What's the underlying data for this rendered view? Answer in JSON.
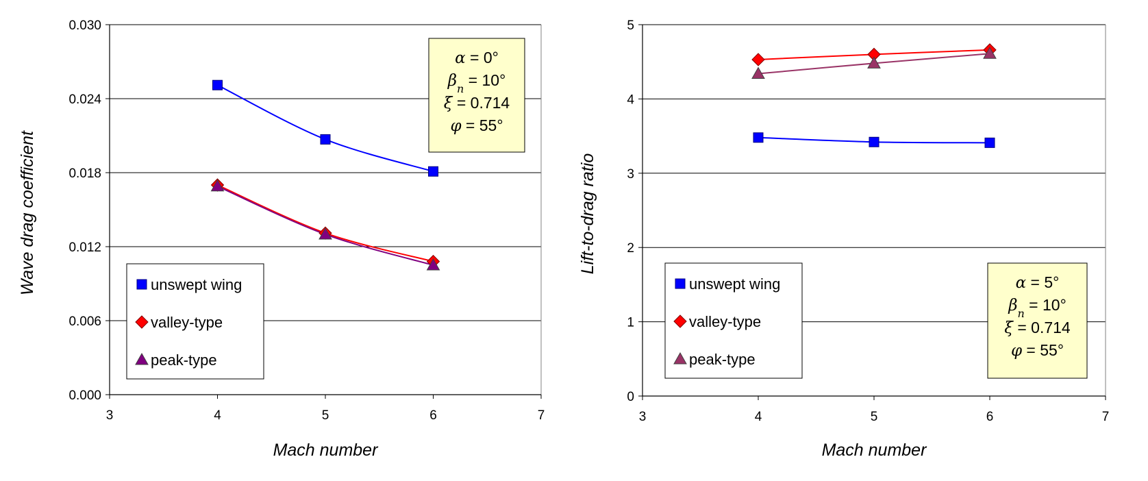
{
  "chart_data": [
    {
      "type": "line",
      "xlabel": "Mach number",
      "ylabel": "Wave drag coefficient",
      "xlim": [
        3,
        7
      ],
      "ylim": [
        0,
        0.03
      ],
      "xticks": [
        "3",
        "4",
        "5",
        "6",
        "7"
      ],
      "yticks": [
        "0.000",
        "0.006",
        "0.012",
        "0.018",
        "0.024",
        "0.030"
      ],
      "grid": "horizontal",
      "legend_position": "bottom-left",
      "x": [
        4,
        5,
        6
      ],
      "series": [
        {
          "name": "unswept wing",
          "values": [
            0.0251,
            0.0207,
            0.0181
          ],
          "color": "#0000ff",
          "marker": "square"
        },
        {
          "name": "valley-type",
          "values": [
            0.017,
            0.0131,
            0.0108
          ],
          "color": "#ff0000",
          "marker": "diamond"
        },
        {
          "name": "peak-type",
          "values": [
            0.0169,
            0.013,
            0.0105
          ],
          "color": "#800080",
          "marker": "triangle"
        }
      ],
      "params": [
        {
          "sym": "α",
          "sub": "",
          "value": " = 0°"
        },
        {
          "sym": "β",
          "sub": "n",
          "value": " = 10°"
        },
        {
          "sym": "ξ",
          "sub": "",
          "value": " = 0.714"
        },
        {
          "sym": "φ",
          "sub": "",
          "value": " = 55°"
        }
      ],
      "params_position": "top-right"
    },
    {
      "type": "line",
      "xlabel": "Mach number",
      "ylabel": "Lift-to-drag ratio",
      "xlim": [
        3,
        7
      ],
      "ylim": [
        0,
        5
      ],
      "xticks": [
        "3",
        "4",
        "5",
        "6",
        "7"
      ],
      "yticks": [
        "0",
        "1",
        "2",
        "3",
        "4",
        "5"
      ],
      "grid": "horizontal",
      "legend_position": "bottom-left",
      "x": [
        4,
        5,
        6
      ],
      "series": [
        {
          "name": "unswept wing",
          "values": [
            3.48,
            3.42,
            3.41
          ],
          "color": "#0000ff",
          "marker": "square"
        },
        {
          "name": "valley-type",
          "values": [
            4.53,
            4.6,
            4.66
          ],
          "color": "#ff0000",
          "marker": "diamond"
        },
        {
          "name": "peak-type",
          "values": [
            4.34,
            4.48,
            4.61
          ],
          "color": "#993366",
          "marker": "triangle"
        }
      ],
      "params": [
        {
          "sym": "α",
          "sub": "",
          "value": " = 5°"
        },
        {
          "sym": "β",
          "sub": "n",
          "value": " = 10°"
        },
        {
          "sym": "ξ",
          "sub": "",
          "value": " = 0.714"
        },
        {
          "sym": "φ",
          "sub": "",
          "value": " = 55°"
        }
      ],
      "params_position": "bottom-right"
    }
  ]
}
